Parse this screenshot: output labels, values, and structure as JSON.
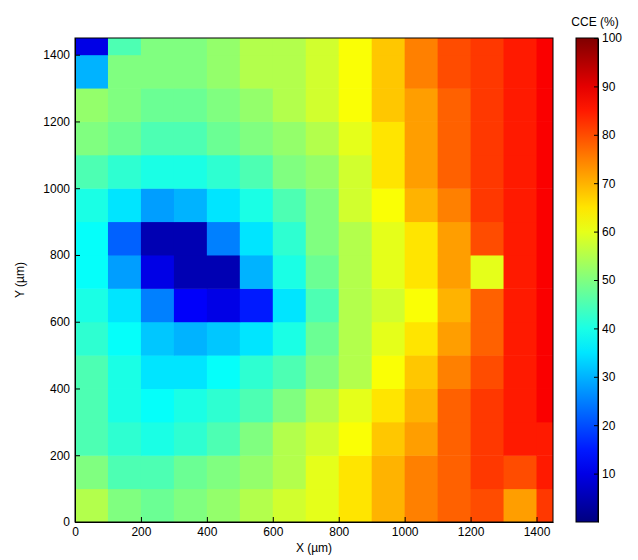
{
  "chart_data": {
    "type": "heatmap",
    "xlabel": "X (µm)",
    "ylabel": "Y (µm)",
    "x": [
      50,
      150,
      250,
      350,
      450,
      550,
      650,
      750,
      850,
      950,
      1050,
      1150,
      1250,
      1350,
      1450
    ],
    "y": [
      50,
      150,
      250,
      350,
      450,
      550,
      650,
      750,
      850,
      950,
      1050,
      1150,
      1250,
      1350,
      1450
    ],
    "cells": [
      [
        55,
        50,
        48,
        50,
        52,
        55,
        58,
        60,
        65,
        70,
        75,
        78,
        80,
        72,
        82
      ],
      [
        50,
        45,
        45,
        48,
        50,
        52,
        55,
        60,
        65,
        70,
        75,
        78,
        82,
        80,
        85
      ],
      [
        45,
        42,
        40,
        42,
        45,
        50,
        55,
        58,
        62,
        68,
        72,
        78,
        82,
        85,
        85
      ],
      [
        45,
        40,
        38,
        40,
        42,
        45,
        50,
        55,
        60,
        65,
        70,
        78,
        82,
        85,
        88
      ],
      [
        45,
        40,
        35,
        35,
        38,
        42,
        45,
        50,
        55,
        62,
        68,
        75,
        80,
        85,
        88
      ],
      [
        42,
        38,
        32,
        30,
        32,
        35,
        40,
        48,
        55,
        60,
        65,
        72,
        78,
        85,
        88
      ],
      [
        40,
        35,
        25,
        12,
        10,
        15,
        35,
        45,
        55,
        58,
        62,
        70,
        78,
        85,
        88
      ],
      [
        38,
        28,
        10,
        5,
        5,
        30,
        40,
        48,
        55,
        60,
        65,
        72,
        60,
        85,
        88
      ],
      [
        38,
        22,
        5,
        5,
        25,
        35,
        42,
        50,
        55,
        60,
        65,
        72,
        80,
        85,
        88
      ],
      [
        40,
        35,
        28,
        30,
        35,
        40,
        45,
        50,
        58,
        62,
        70,
        75,
        82,
        85,
        88
      ],
      [
        45,
        42,
        40,
        40,
        42,
        45,
        50,
        52,
        58,
        65,
        72,
        78,
        82,
        85,
        88
      ],
      [
        50,
        48,
        45,
        45,
        48,
        50,
        52,
        55,
        60,
        65,
        72,
        78,
        82,
        85,
        88
      ],
      [
        52,
        50,
        48,
        48,
        50,
        52,
        55,
        58,
        62,
        68,
        72,
        78,
        82,
        85,
        88
      ],
      [
        30,
        50,
        50,
        50,
        52,
        55,
        55,
        58,
        62,
        68,
        75,
        80,
        82,
        85,
        88
      ],
      [
        10,
        45,
        50,
        50,
        52,
        55,
        55,
        58,
        62,
        68,
        75,
        80,
        82,
        85,
        88
      ]
    ],
    "xlim": [
      0,
      1450
    ],
    "ylim": [
      0,
      1450
    ],
    "xticks": [
      0,
      200,
      400,
      600,
      800,
      1000,
      1200,
      1400
    ],
    "yticks": [
      0,
      200,
      400,
      600,
      800,
      1000,
      1200,
      1400
    ],
    "color": "jet",
    "colorbar": {
      "label": "CCE (%)",
      "range": [
        0,
        100
      ],
      "ticks": [
        10,
        20,
        30,
        40,
        50,
        60,
        70,
        80,
        90,
        100
      ]
    }
  }
}
